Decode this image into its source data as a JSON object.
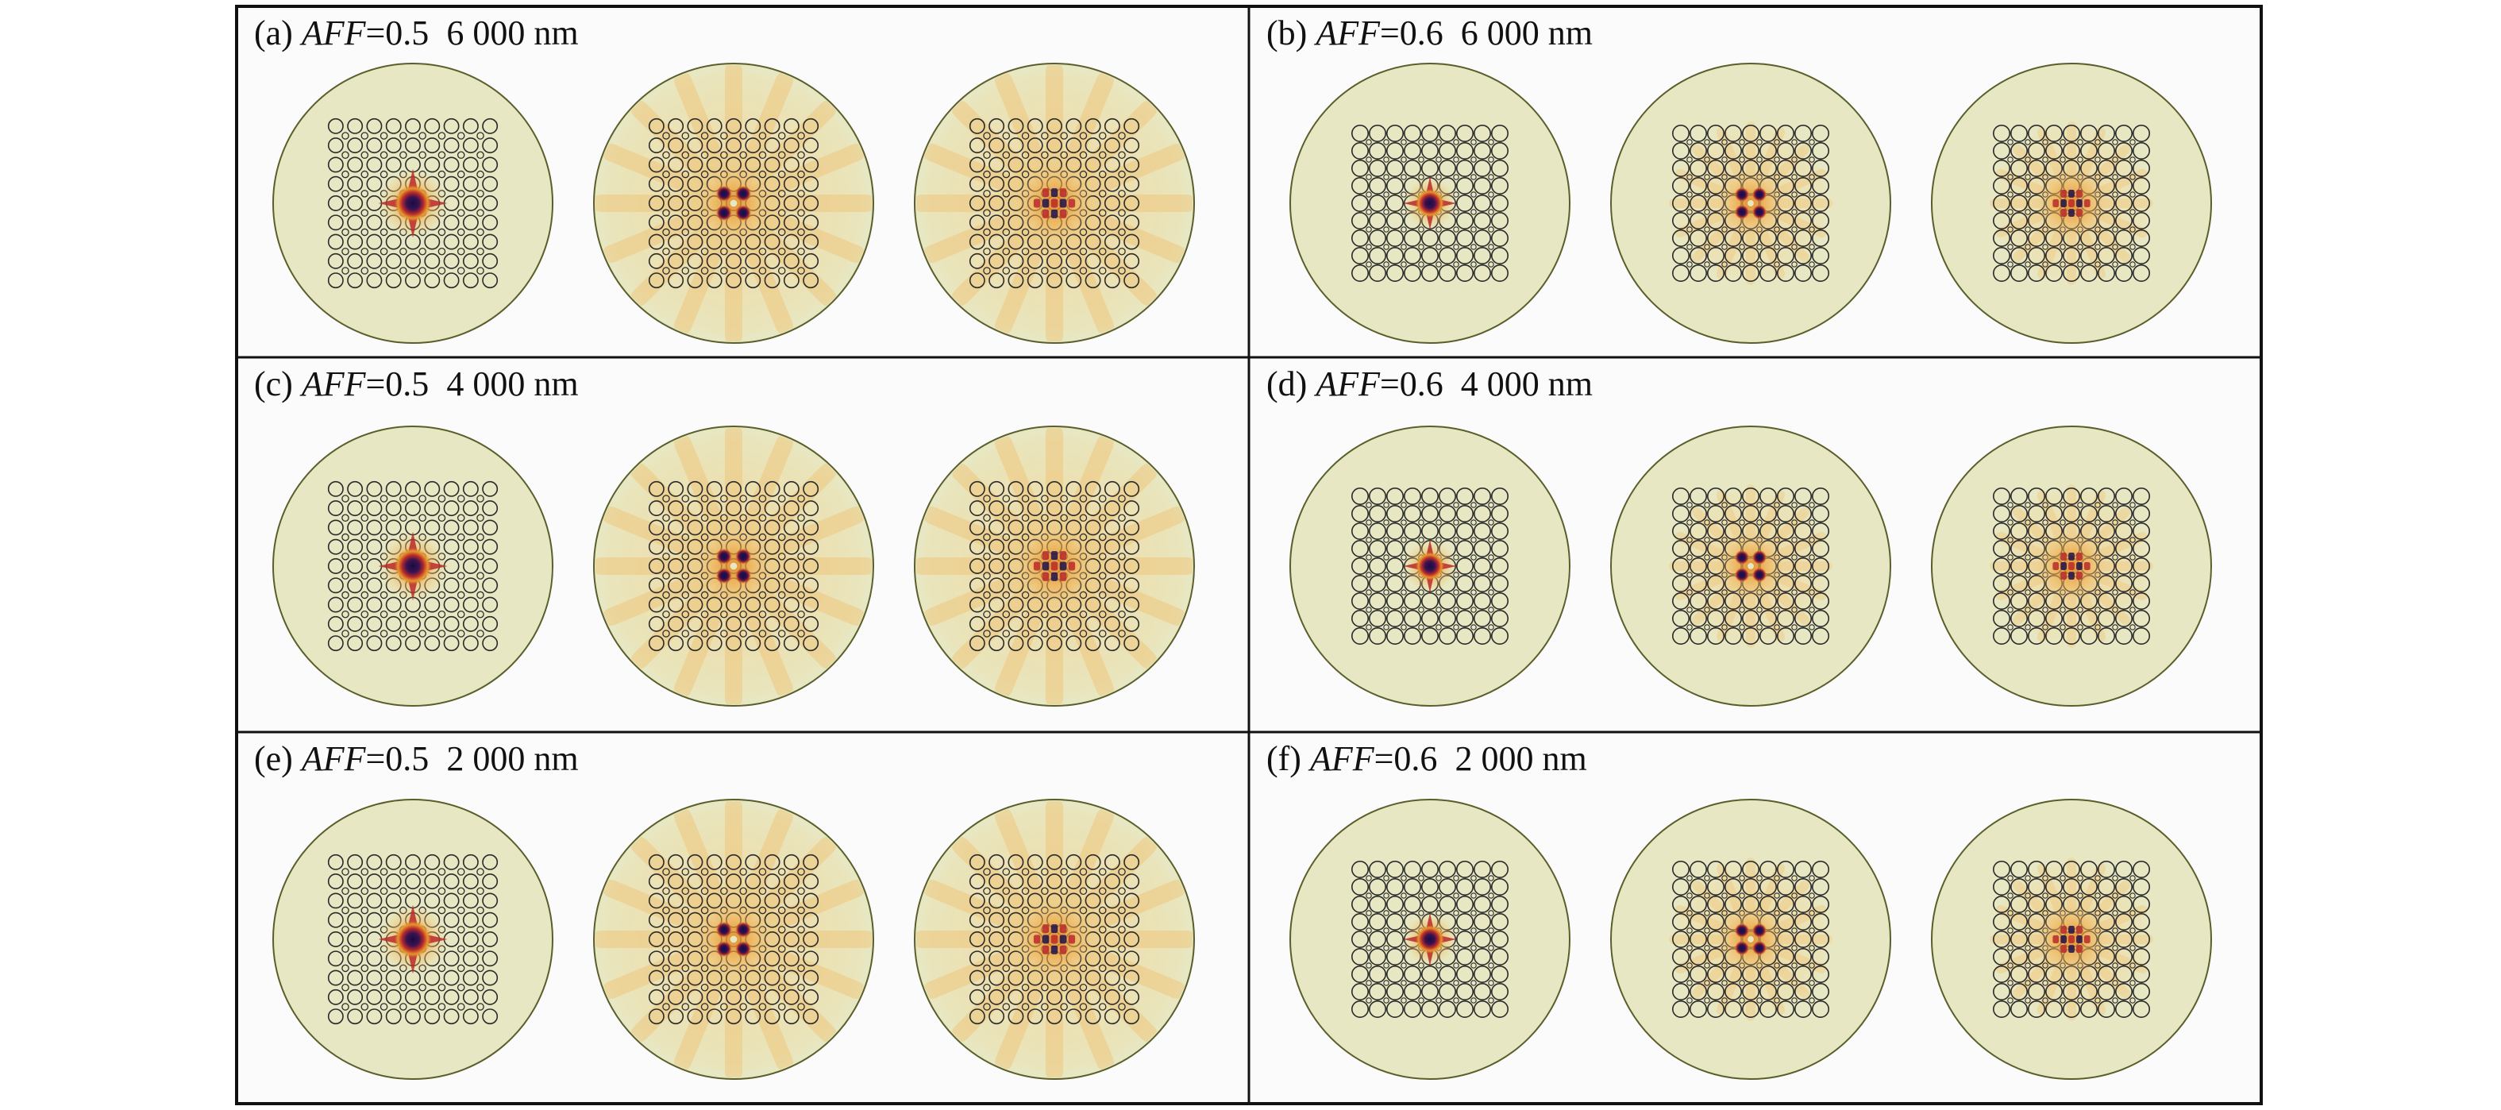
{
  "colors": {
    "page_background": "#ffffff",
    "panel_background": "#fbfbfb",
    "frame_stroke": "#111111",
    "cladding_fill": "#e7e8c3",
    "cladding_stroke": "#5a5e2a",
    "hole_stroke": "#2a2a2a",
    "mode_core": "#20104a",
    "mode_mid": "#b82a2a",
    "mode_outer": "#e6952c",
    "mode_halo": "#f0c070"
  },
  "panels": [
    {
      "id": "a",
      "label_prefix": "(a) ",
      "label_italic": "AFF",
      "label_value": "=0.5",
      "label_suffix": "  6 000 nm",
      "dense_holes": true,
      "modes": [
        1,
        2,
        3
      ]
    },
    {
      "id": "b",
      "label_prefix": "(b) ",
      "label_italic": "AFF",
      "label_value": "=0.6",
      "label_suffix": "  6 000 nm",
      "dense_holes": false,
      "modes": [
        1,
        2,
        3
      ]
    },
    {
      "id": "c",
      "label_prefix": "(c) ",
      "label_italic": "AFF",
      "label_value": "=0.5",
      "label_suffix": "  4 000 nm",
      "dense_holes": true,
      "modes": [
        1,
        2,
        3
      ]
    },
    {
      "id": "d",
      "label_prefix": "(d) ",
      "label_italic": "AFF",
      "label_value": "=0.6",
      "label_suffix": "  4 000 nm",
      "dense_holes": false,
      "modes": [
        1,
        2,
        3
      ]
    },
    {
      "id": "e",
      "label_prefix": "(e) ",
      "label_italic": "AFF",
      "label_value": "=0.5",
      "label_suffix": "  2 000 nm",
      "dense_holes": true,
      "modes": [
        1,
        2,
        3
      ]
    },
    {
      "id": "f",
      "label_prefix": "(f) ",
      "label_italic": "AFF",
      "label_value": "=0.6",
      "label_suffix": "  2 000 nm",
      "dense_holes": false,
      "modes": [
        1,
        2,
        3
      ]
    }
  ]
}
